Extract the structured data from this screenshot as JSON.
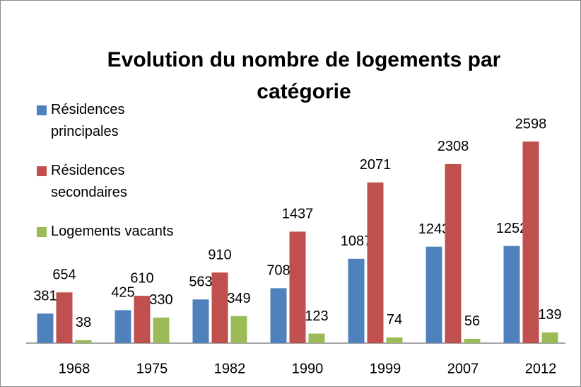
{
  "chart_data": {
    "type": "bar",
    "title": "Evolution du nombre de logements par catégorie",
    "categories": [
      "1968",
      "1975",
      "1982",
      "1990",
      "1999",
      "2007",
      "2012"
    ],
    "series": [
      {
        "name": "Résidences principales",
        "color": "#4f81bd",
        "values": [
          381,
          425,
          563,
          708,
          1087,
          1243,
          1252
        ]
      },
      {
        "name": "Résidences secondaires",
        "color": "#c0504d",
        "values": [
          654,
          610,
          910,
          1437,
          2071,
          2308,
          2598
        ]
      },
      {
        "name": "Logements vacants",
        "color": "#9bbb59",
        "values": [
          38,
          330,
          349,
          123,
          74,
          56,
          139
        ]
      }
    ],
    "ylim": [
      0,
      3000
    ],
    "legend": "left"
  }
}
